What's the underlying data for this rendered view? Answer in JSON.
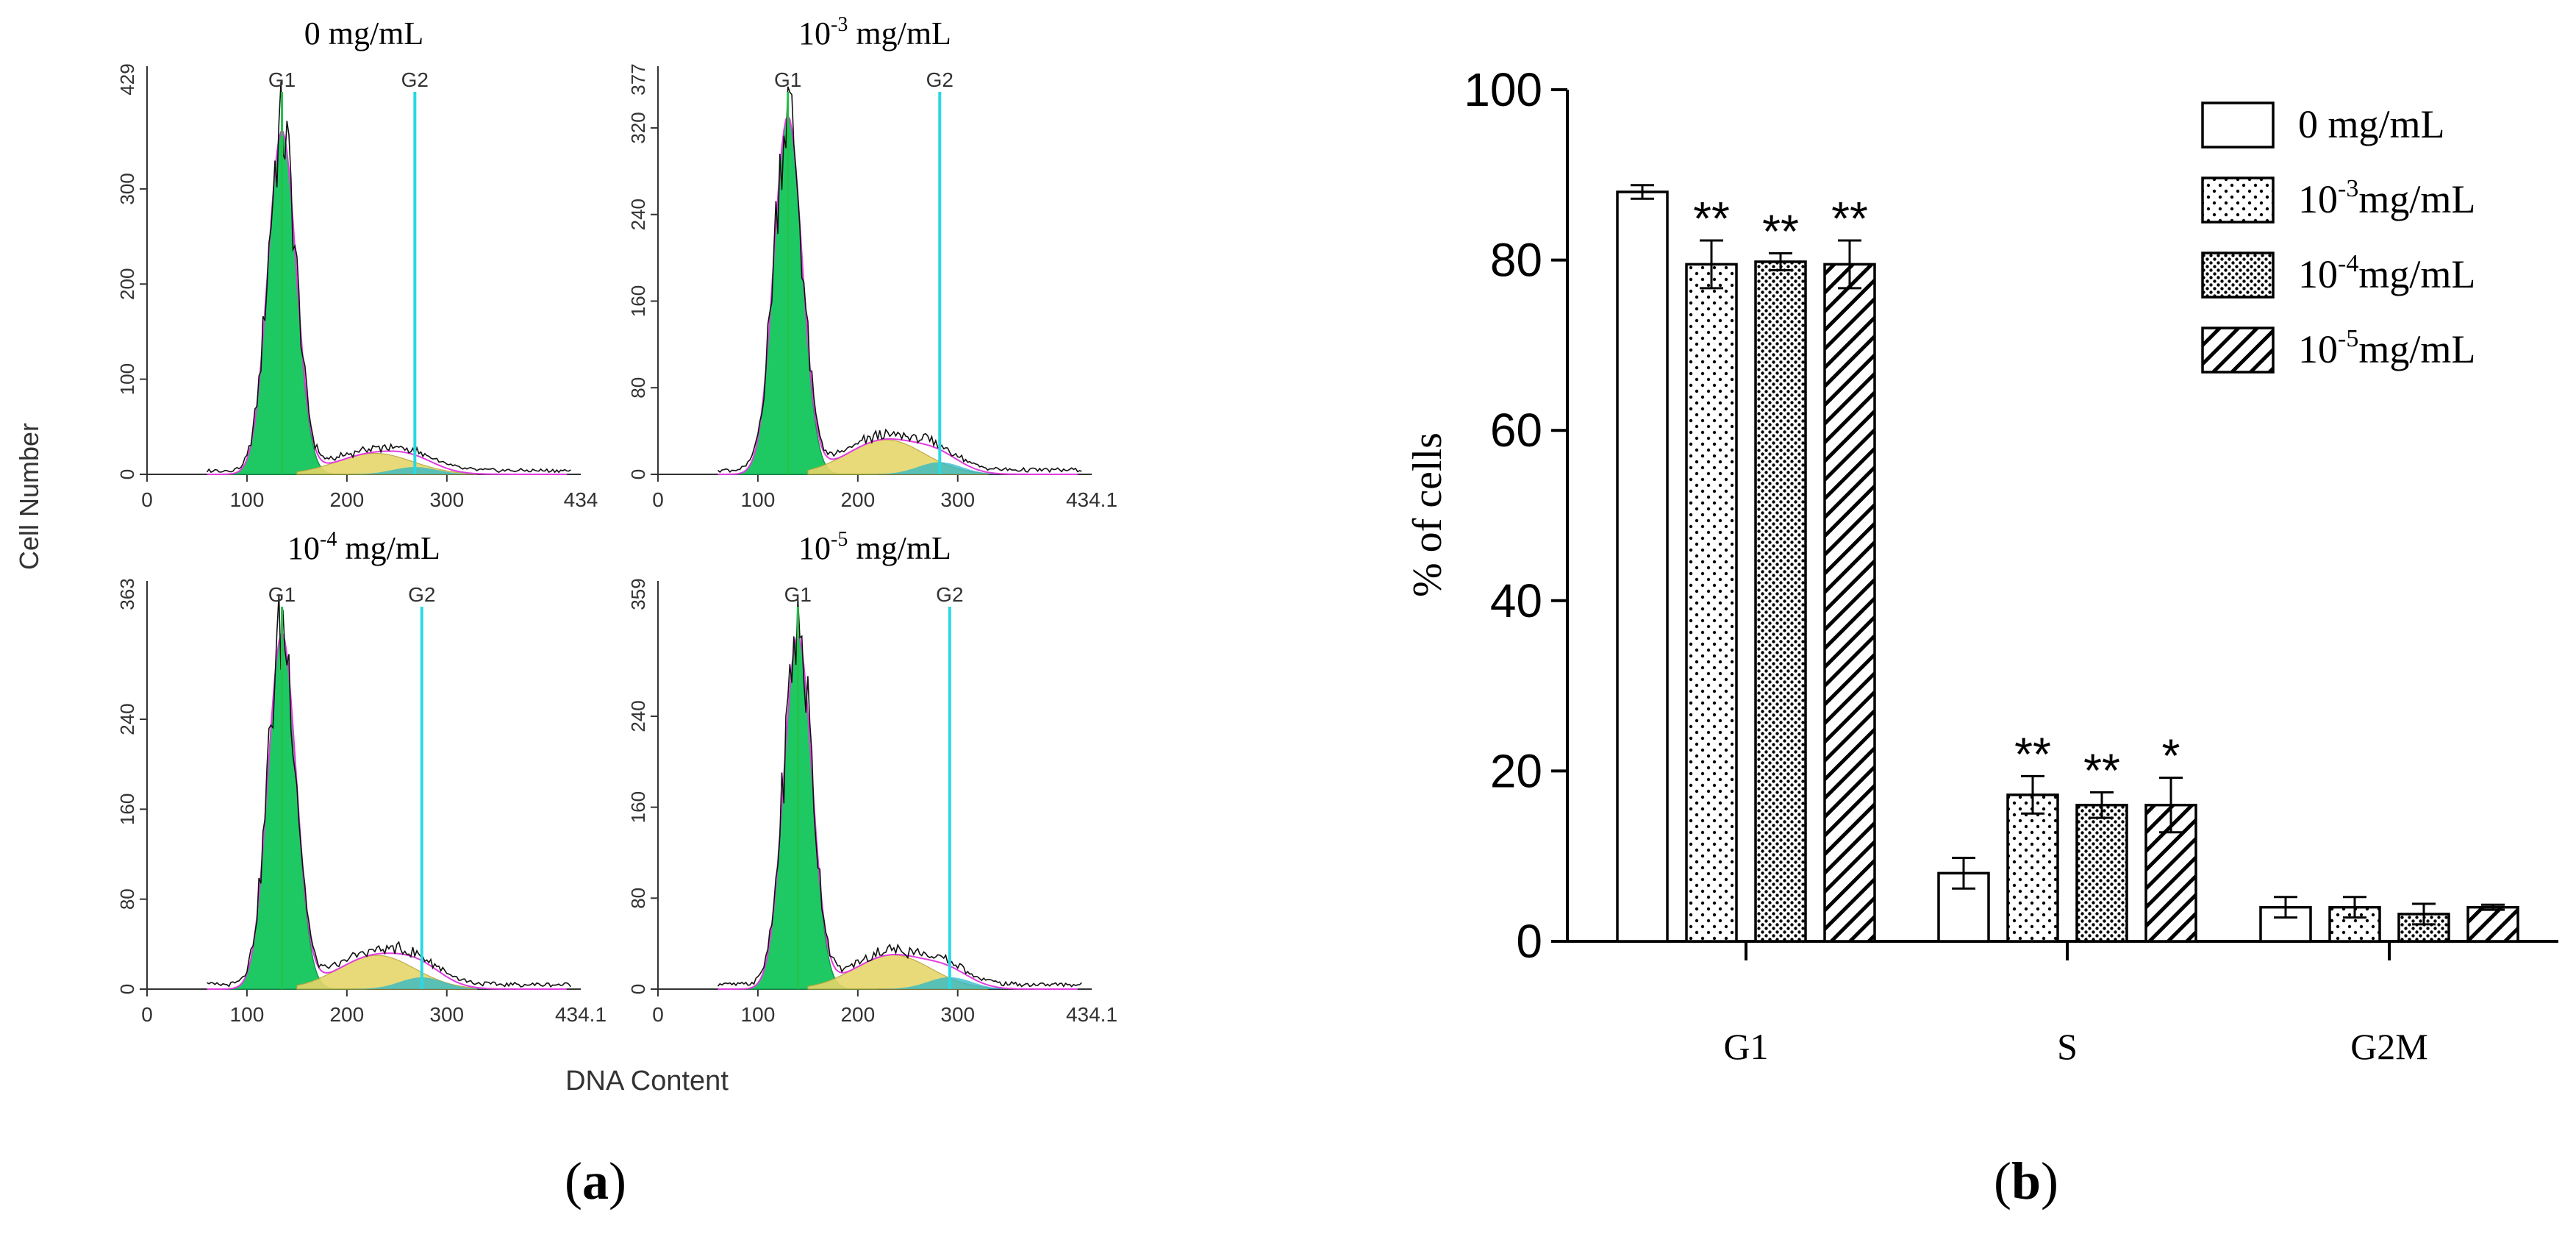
{
  "panel_a": {
    "label_open": "(",
    "label_letter": "a",
    "label_close": ")",
    "y_axis_label": "Cell Number",
    "x_axis_label": "DNA Content",
    "peak_labels": [
      "G1",
      "G2"
    ],
    "colors": {
      "g1_fill": "#1ec964",
      "s_fill": "#e6d66a",
      "g2_line": "#29d9e3",
      "g1_line": "#25c24a",
      "envelope": "#e23ce0",
      "trace": "#111111",
      "tail": "#2ab7c9"
    },
    "histograms": [
      {
        "title_base": "0 mg/mL",
        "title_exp": "",
        "title_unit": "",
        "y_ticks": [
          "0",
          "100",
          "200",
          "300"
        ],
        "y_tick_values": [
          0,
          100,
          200,
          300
        ],
        "y_max_label": "429",
        "y_max": 429,
        "x_ticks": [
          "0",
          "100",
          "200",
          "300"
        ],
        "x_tick_values": [
          0,
          100,
          200,
          300
        ],
        "x_max_label": "434",
        "x_max": 434,
        "g1_pos": 135,
        "g2_pos": 268,
        "g1_peak": 360,
        "s_height": 22,
        "s_center": 228
      },
      {
        "title_base": "10",
        "title_exp": "-3",
        "title_unit": " mg/mL",
        "y_ticks": [
          "0",
          "80",
          "160",
          "240",
          "320"
        ],
        "y_tick_values": [
          0,
          80,
          160,
          240,
          320
        ],
        "y_max_label": "377",
        "y_max": 377,
        "x_ticks": [
          "0",
          "100",
          "200",
          "300"
        ],
        "x_tick_values": [
          0,
          100,
          200,
          300
        ],
        "x_max_label": "434.1",
        "x_max": 434.1,
        "g1_pos": 130,
        "g2_pos": 282,
        "g1_peak": 330,
        "s_height": 32,
        "s_center": 228
      },
      {
        "title_base": "10",
        "title_exp": "-4",
        "title_unit": " mg/mL",
        "y_ticks": [
          "0",
          "80",
          "160",
          "240"
        ],
        "y_tick_values": [
          0,
          80,
          160,
          240
        ],
        "y_max_label": "363",
        "y_max": 363,
        "x_ticks": [
          "0",
          "100",
          "200",
          "300"
        ],
        "x_tick_values": [
          0,
          100,
          200,
          300
        ],
        "x_max_label": "434.1",
        "x_max": 434.1,
        "g1_pos": 135,
        "g2_pos": 275,
        "g1_peak": 315,
        "s_height": 30,
        "s_center": 230
      },
      {
        "title_base": "10",
        "title_exp": "-5",
        "title_unit": " mg/mL",
        "y_ticks": [
          "0",
          "80",
          "160",
          "240"
        ],
        "y_tick_values": [
          0,
          80,
          160,
          240
        ],
        "y_max_label": "359",
        "y_max": 359,
        "x_ticks": [
          "0",
          "100",
          "200",
          "300"
        ],
        "x_tick_values": [
          0,
          100,
          200,
          300
        ],
        "x_max_label": "434.1",
        "x_max": 434.1,
        "g1_pos": 140,
        "g2_pos": 292,
        "g1_peak": 310,
        "s_height": 30,
        "s_center": 235
      }
    ]
  },
  "panel_b": {
    "label_open": "(",
    "label_letter": "b",
    "label_close": ")"
  },
  "chart_data": {
    "type": "bar",
    "categories": [
      "G1",
      "S",
      "G2M"
    ],
    "series": [
      {
        "name": "0 mg/mL",
        "name_base": "0 mg/mL",
        "name_exp": "",
        "name_unit": "",
        "pattern": "open",
        "values": [
          88,
          8,
          4
        ],
        "errors": [
          0.8,
          1.8,
          1.2
        ],
        "significance": [
          "",
          "",
          ""
        ]
      },
      {
        "name": "10-3mg/mL",
        "name_base": "10",
        "name_exp": "-3",
        "name_unit": "mg/mL",
        "pattern": "sparse-dots",
        "values": [
          79.5,
          17.2,
          4
        ],
        "errors": [
          2.8,
          2.2,
          1.2
        ],
        "significance": [
          "**",
          "**",
          ""
        ]
      },
      {
        "name": "10-4mg/mL",
        "name_base": "10",
        "name_exp": "-4",
        "name_unit": "mg/mL",
        "pattern": "dense-dots",
        "values": [
          79.8,
          16,
          3.2
        ],
        "errors": [
          1.0,
          1.5,
          1.2
        ],
        "significance": [
          "**",
          "**",
          ""
        ]
      },
      {
        "name": "10-5mg/mL",
        "name_base": "10",
        "name_exp": "-5",
        "name_unit": "mg/mL",
        "pattern": "hatch",
        "values": [
          79.5,
          16,
          4
        ],
        "errors": [
          2.8,
          3.2,
          0.3
        ],
        "significance": [
          "**",
          "*",
          ""
        ]
      }
    ],
    "yticks": [
      0,
      20,
      40,
      60,
      80,
      100
    ],
    "ylim": [
      0,
      100
    ],
    "ylabel": "% of cells",
    "xlabel": "",
    "title": "",
    "legend_position": "top-right"
  }
}
